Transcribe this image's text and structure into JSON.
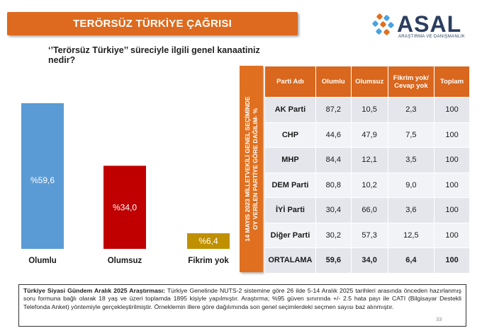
{
  "header": {
    "title": "TERÖRSÜZ TÜRKİYE ÇAĞRISI"
  },
  "logo": {
    "name": "ASAL",
    "subtitle": "ARAŞTIRMA VE DANIŞMANLIK"
  },
  "question": "‘’Terörsüz Türkiye’’ süreciyle ilgili genel kanaatiniz nedir?",
  "chart_data": {
    "type": "bar",
    "categories": [
      "Olumlu",
      "Olumsuz",
      "Fikrim yok"
    ],
    "values": [
      59.6,
      34.0,
      6.4
    ],
    "data_labels": [
      "%59,6",
      "%34,0",
      "%6,4"
    ],
    "colors": [
      "#5b9bd5",
      "#c00000",
      "#bf9000"
    ],
    "ylim": [
      0,
      70
    ],
    "grid": false,
    "title": "",
    "xlabel": "",
    "ylabel": ""
  },
  "table": {
    "side_label_line1": "14 MAYIS 2023 MİLLETVEKİLİ GENEL SEÇİMİNDE",
    "side_label_line2": "OY VERİLEN PARTİYE GÖRE DAĞILIM- %",
    "headers": [
      "Parti Adı",
      "Olumlu",
      "Olumsuz",
      "Fikrim yok/ Cevap yok",
      "Toplam"
    ],
    "rows": [
      [
        "AK Parti",
        "87,2",
        "10,5",
        "2,3",
        "100"
      ],
      [
        "CHP",
        "44,6",
        "47,9",
        "7,5",
        "100"
      ],
      [
        "MHP",
        "84,4",
        "12,1",
        "3,5",
        "100"
      ],
      [
        "DEM Parti",
        "80,8",
        "10,2",
        "9,0",
        "100"
      ],
      [
        "İYİ Parti",
        "30,4",
        "66,0",
        "3,6",
        "100"
      ],
      [
        "Diğer Parti",
        "30,2",
        "57,3",
        "12,5",
        "100"
      ],
      [
        "ORTALAMA",
        "59,6",
        "34,0",
        "6,4",
        "100"
      ]
    ]
  },
  "note": {
    "lead": "Türkiye Siyasi Gündem Aralık 2025 Araştırması:",
    "body": " Türkiye Genelinde NUTS-2 sistemine göre 26 ilde 5-14 Aralık 2025 tarihleri arasında önceden hazırlanmış soru formuna bağlı olarak 18 yaş ve üzeri toplamda 1895 kişiyle yapılmıştır. Araştırma; %95 güven sınırında +/- 2.5 hata payı ile CATI (Bilgisayar Destekli Telefonda Anket) yöntemiyle gerçekleştirilmiştir. Örneklemin illere göre dağılımında son genel seçimlerdeki seçmen sayısı baz alınmıştır."
  },
  "page_number": "33"
}
